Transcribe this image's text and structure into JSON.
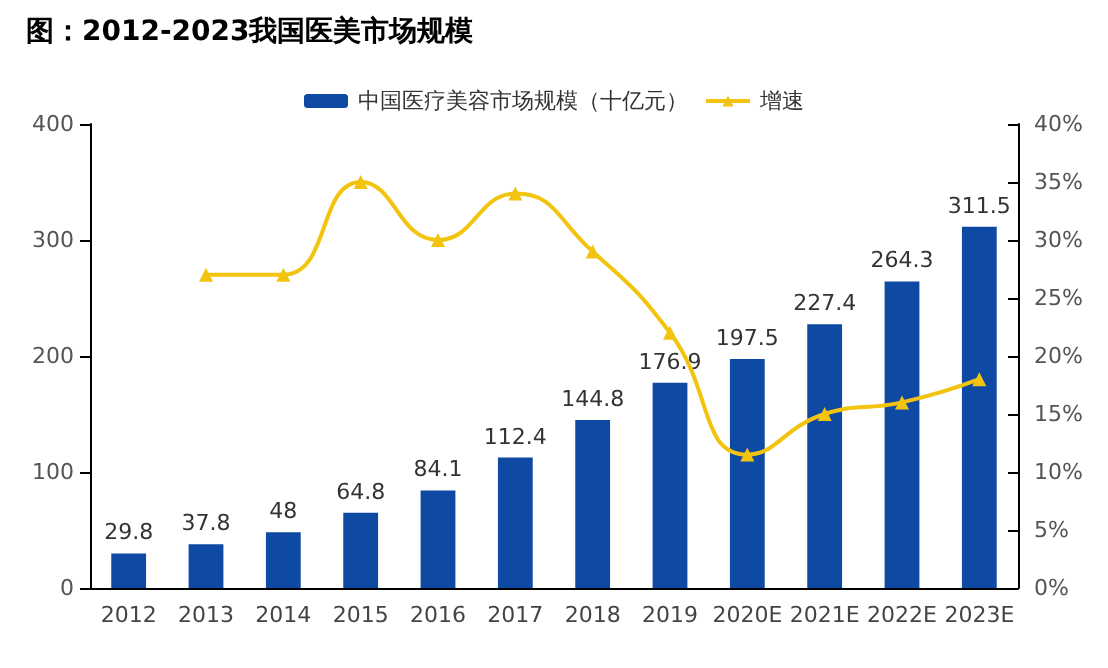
{
  "chart_data": {
    "type": "bar",
    "title": "图：2012-2023我国医美市场规模",
    "categories": [
      "2012",
      "2013",
      "2014",
      "2015",
      "2016",
      "2017",
      "2018",
      "2019",
      "2020E",
      "2021E",
      "2022E",
      "2023E"
    ],
    "series": [
      {
        "name": "中国医疗美容市场规模（十亿元）",
        "color": "#0e4aa3",
        "values": [
          29.8,
          37.8,
          48,
          64.8,
          84.1,
          112.4,
          144.8,
          176.9,
          197.5,
          227.4,
          264.3,
          311.5
        ],
        "value_labels": [
          "29.8",
          "37.8",
          "48",
          "64.8",
          "84.1",
          "112.4",
          "144.8",
          "176.9",
          "197.5",
          "227.4",
          "264.3",
          "311.5"
        ]
      },
      {
        "name": "增速",
        "type": "line",
        "axis": "y2",
        "color": "#f2c40f",
        "marker": "triangle",
        "values": [
          null,
          27,
          27,
          35,
          30,
          34,
          29,
          22,
          11.5,
          15,
          16,
          18
        ]
      }
    ],
    "ylim": [
      0,
      400
    ],
    "yticks": [
      0,
      100,
      200,
      300,
      400
    ],
    "y2lim": [
      0,
      40
    ],
    "y2ticks": [
      {
        "value": 0,
        "label": "0%"
      },
      {
        "value": 5,
        "label": "5%"
      },
      {
        "value": 10,
        "label": "10%"
      },
      {
        "value": 15,
        "label": "15%"
      },
      {
        "value": 20,
        "label": "20%"
      },
      {
        "value": 25,
        "label": "25%"
      },
      {
        "value": 30,
        "label": "30%"
      },
      {
        "value": 35,
        "label": "35%"
      },
      {
        "value": 40,
        "label": "40%"
      }
    ],
    "legend": "top",
    "grid": false
  }
}
